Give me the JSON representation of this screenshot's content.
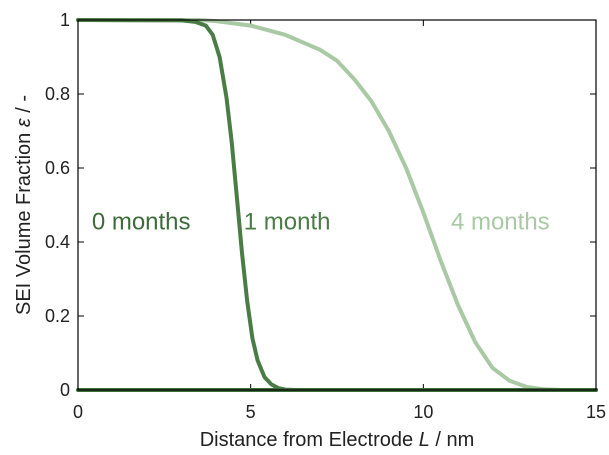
{
  "chart_data": {
    "type": "line",
    "xlabel": {
      "pre": "Distance from Electrode ",
      "var": "L",
      "post": " /  nm"
    },
    "ylabel": {
      "pre": "SEI Volume Fraction ",
      "var": "ε",
      "post": "  /  -"
    },
    "xlim": [
      0,
      15
    ],
    "ylim": [
      0,
      1
    ],
    "xticks": [
      0,
      5,
      10,
      15
    ],
    "yticks": [
      0,
      0.2,
      0.4,
      0.6,
      0.8,
      1
    ],
    "xtick_labels": [
      "0",
      "5",
      "10",
      "15"
    ],
    "ytick_labels": [
      "0",
      "0.2",
      "0.4",
      "0.6",
      "0.8",
      "1"
    ],
    "grid": false,
    "legend": "none",
    "series": [
      {
        "name": "0 months",
        "color": "#3e6b3a",
        "x": [
          0,
          15
        ],
        "y": [
          0,
          0
        ],
        "label_pos": {
          "x": 0.4,
          "y": 0.455
        }
      },
      {
        "name": "1 month",
        "color": "#4a7c45",
        "x": [
          0,
          3.0,
          3.4,
          3.7,
          3.9,
          4.1,
          4.3,
          4.45,
          4.6,
          4.75,
          4.9,
          5.05,
          5.2,
          5.4,
          5.6,
          5.8,
          6.0,
          6.3,
          15
        ],
        "y": [
          1,
          0.999,
          0.995,
          0.985,
          0.96,
          0.9,
          0.79,
          0.67,
          0.52,
          0.37,
          0.24,
          0.14,
          0.08,
          0.035,
          0.015,
          0.005,
          0.001,
          0,
          0
        ],
        "label_pos": {
          "x": 4.8,
          "y": 0.455
        }
      },
      {
        "name": "4 months",
        "color": "#a9c9a4",
        "x": [
          0,
          3.5,
          4.0,
          5.0,
          6.0,
          7.0,
          7.5,
          8.0,
          8.5,
          9.0,
          9.5,
          10.0,
          10.5,
          11.0,
          11.5,
          12.0,
          12.5,
          13.0,
          13.5,
          14.0,
          15
        ],
        "y": [
          1,
          1,
          0.997,
          0.985,
          0.96,
          0.92,
          0.89,
          0.84,
          0.78,
          0.7,
          0.6,
          0.48,
          0.35,
          0.23,
          0.13,
          0.06,
          0.025,
          0.008,
          0.002,
          0,
          0
        ],
        "label_pos": {
          "x": 10.8,
          "y": 0.455
        }
      }
    ]
  }
}
